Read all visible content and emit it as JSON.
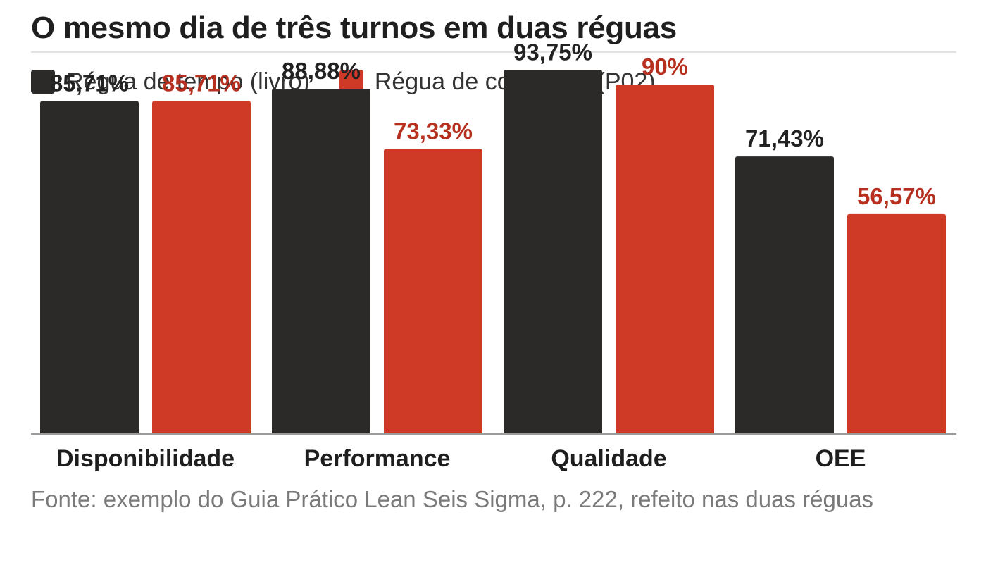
{
  "title": "O mesmo dia de três turnos em duas réguas",
  "source": "Fonte: exemplo do Guia Prático Lean Seis Sigma, p. 222, refeito nas duas réguas",
  "colors": {
    "series_dark": "#2b2a29",
    "series_red": "#cf3a27",
    "label_red": "#b7301f",
    "label_dark": "#222222",
    "baseline": "#9a9a9a"
  },
  "chart_data": {
    "type": "bar",
    "categories": [
      "Disponibilidade",
      "Performance",
      "Qualidade",
      "OEE"
    ],
    "series": [
      {
        "name": "Régua de tempo (livro)",
        "values": [
          85.71,
          88.88,
          93.75,
          71.43
        ],
        "labels": [
          "85,71%",
          "88,88%",
          "93,75%",
          "71,43%"
        ],
        "color": "#2b2a29"
      },
      {
        "name": "Régua de contagem (P02)",
        "values": [
          85.71,
          73.33,
          90,
          56.57
        ],
        "labels": [
          "85,71%",
          "73,33%",
          "90%",
          "56,57%"
        ],
        "color": "#cf3a27"
      }
    ],
    "ylim": [
      0,
      100
    ],
    "grid": false,
    "legend_position": "top-left"
  }
}
